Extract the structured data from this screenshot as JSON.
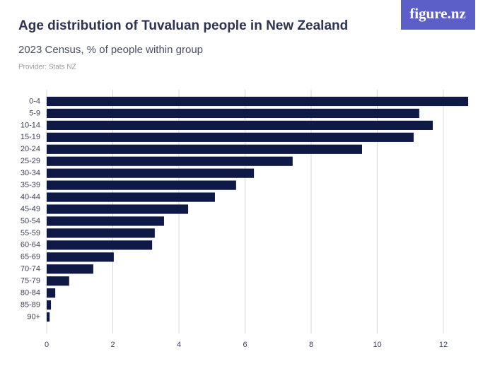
{
  "logo": "figure.nz",
  "chart_data": {
    "type": "hbar",
    "title": "Age distribution of Tuvaluan people in New Zealand",
    "subtitle": "2023 Census, % of people within group",
    "provider": "Provider: Stats NZ",
    "categories": [
      "0-4",
      "5-9",
      "10-14",
      "15-19",
      "20-24",
      "25-29",
      "30-34",
      "35-39",
      "40-44",
      "45-49",
      "50-54",
      "55-59",
      "60-64",
      "65-69",
      "70-74",
      "75-79",
      "80-84",
      "85-89",
      "90+"
    ],
    "values": [
      12.75,
      11.27,
      11.68,
      11.1,
      9.54,
      7.44,
      6.27,
      5.73,
      5.09,
      4.28,
      3.55,
      3.27,
      3.19,
      2.03,
      1.41,
      0.68,
      0.26,
      0.13,
      0.09
    ],
    "color": "#0e1a45",
    "xlim": [
      0,
      13
    ],
    "xticks": [
      0,
      2,
      4,
      6,
      8,
      10,
      12
    ],
    "grid": true
  }
}
